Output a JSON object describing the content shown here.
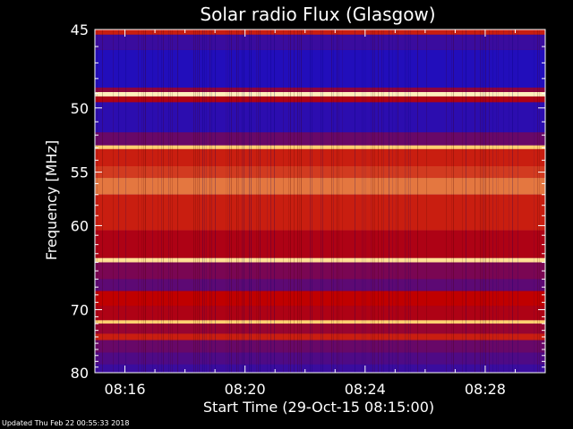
{
  "chart_data": {
    "type": "heatmap",
    "title": "Solar radio Flux (Glasgow)",
    "xlabel": "Start Time (29-Oct-15 08:15:00)",
    "ylabel": "Frequency [MHz]",
    "x_ticks": [
      "08:16",
      "08:20",
      "08:24",
      "08:28"
    ],
    "x_tick_minutes": [
      1,
      5,
      9,
      13
    ],
    "xlim_minutes": [
      0,
      15
    ],
    "y_ticks": [
      45,
      50,
      55,
      60,
      70,
      80
    ],
    "ylim": [
      45,
      80
    ],
    "yscale": "inverse",
    "colors": {
      "background": "#000000",
      "low": "#1010d0",
      "mid": "#c00000",
      "high": "#ffd070",
      "peak": "#ffffe0"
    },
    "bands": [
      {
        "from": 45.0,
        "to": 45.3,
        "level": 0.55
      },
      {
        "from": 45.3,
        "to": 46.2,
        "level": 0.12
      },
      {
        "from": 46.2,
        "to": 48.6,
        "level": 0.05
      },
      {
        "from": 48.6,
        "to": 48.9,
        "level": 0.35
      },
      {
        "from": 48.9,
        "to": 49.2,
        "level": 0.95
      },
      {
        "from": 49.2,
        "to": 49.6,
        "level": 0.45
      },
      {
        "from": 49.6,
        "to": 51.8,
        "level": 0.08
      },
      {
        "from": 51.8,
        "to": 52.8,
        "level": 0.25
      },
      {
        "from": 52.8,
        "to": 53.1,
        "level": 0.85
      },
      {
        "from": 53.1,
        "to": 54.5,
        "level": 0.55
      },
      {
        "from": 54.5,
        "to": 55.5,
        "level": 0.6
      },
      {
        "from": 55.5,
        "to": 57.0,
        "level": 0.7
      },
      {
        "from": 57.0,
        "to": 60.5,
        "level": 0.55
      },
      {
        "from": 60.5,
        "to": 63.5,
        "level": 0.45
      },
      {
        "from": 63.5,
        "to": 64.0,
        "level": 0.9
      },
      {
        "from": 64.0,
        "to": 66.0,
        "level": 0.3
      },
      {
        "from": 66.0,
        "to": 67.5,
        "level": 0.22
      },
      {
        "from": 67.5,
        "to": 69.5,
        "level": 0.5
      },
      {
        "from": 69.5,
        "to": 71.5,
        "level": 0.45
      },
      {
        "from": 71.5,
        "to": 72.0,
        "level": 0.85
      },
      {
        "from": 72.0,
        "to": 73.5,
        "level": 0.38
      },
      {
        "from": 73.5,
        "to": 74.5,
        "level": 0.55
      },
      {
        "from": 74.5,
        "to": 76.5,
        "level": 0.25
      },
      {
        "from": 76.5,
        "to": 78.5,
        "level": 0.18
      },
      {
        "from": 78.5,
        "to": 80.0,
        "level": 0.12
      }
    ]
  },
  "footer": {
    "updated": "Updated Thu Feb 22 00:55:33 2018"
  }
}
